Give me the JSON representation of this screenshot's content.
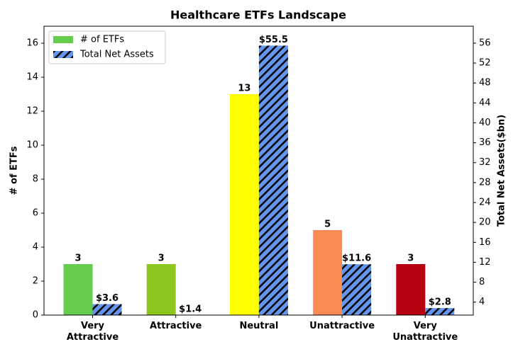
{
  "chart_data": {
    "type": "bar",
    "title": "Healthcare ETFs Landscape",
    "ylabel": "# of ETFs",
    "y2label": "Total Net Assets($bn)",
    "categories": [
      "Very\nAttractive",
      "Attractive",
      "Neutral",
      "Unattractive",
      "Very\nUnattractive"
    ],
    "series": [
      {
        "name": "# of ETFs",
        "color": "#66cc4c",
        "colors": [
          "#66cc4c",
          "#8dc71e",
          "#ffff00",
          "#f98a51",
          "#b5000f"
        ],
        "values": [
          3,
          3,
          13,
          5,
          3
        ]
      },
      {
        "name": "Total Net Assets",
        "color": "#6495ed",
        "hatch": true,
        "axis": "y2",
        "values": [
          3.6,
          1.4,
          55.5,
          11.6,
          2.8
        ],
        "value_labels": [
          "$3.6",
          "$1.4",
          "$55.5",
          "$11.6",
          "$2.8"
        ]
      }
    ],
    "ylim": [
      0,
      17
    ],
    "yticks": [
      0,
      2,
      4,
      6,
      8,
      10,
      12,
      14,
      16
    ],
    "y2lim": [
      1.4,
      59.4
    ],
    "y2ticks": [
      4,
      8,
      12,
      16,
      20,
      24,
      28,
      32,
      36,
      40,
      44,
      48,
      52,
      56
    ],
    "legend": "upper-left"
  }
}
